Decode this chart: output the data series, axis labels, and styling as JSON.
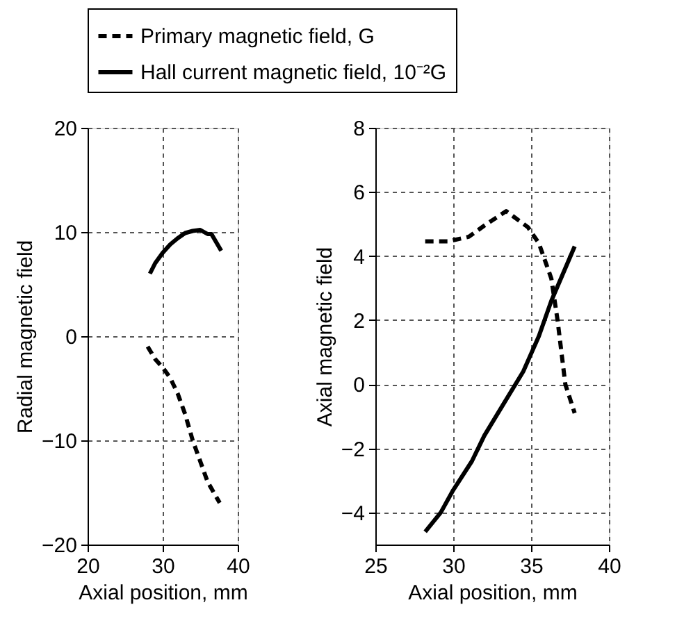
{
  "chart_data": [
    {
      "type": "line",
      "xlabel": "Axial position, mm",
      "ylabel": "Radial magnetic field",
      "xlim": [
        20,
        40
      ],
      "xticks": [
        20,
        30,
        40
      ],
      "ylim": [
        -20,
        20
      ],
      "yticks": [
        -20,
        -10,
        0,
        10,
        20
      ],
      "grid": true,
      "legend": "top",
      "series": [
        {
          "name": "Primary magnetic field, G",
          "color": "#000000",
          "line_style": "dashed",
          "x": [
            28,
            29,
            30,
            31,
            32,
            33,
            34,
            35,
            36,
            37.6
          ],
          "values": [
            -1,
            -2.2,
            -3,
            -4,
            -5.5,
            -7.5,
            -10,
            -12,
            -14,
            -16
          ]
        },
        {
          "name": "Hall current magnetic field, 10⁻²G",
          "color": "#000000",
          "line_style": "solid",
          "x": [
            28.3,
            29,
            30,
            31,
            32,
            33,
            34,
            35,
            36,
            36.5,
            37.8
          ],
          "values": [
            6,
            7,
            8,
            8.8,
            9.4,
            9.9,
            10.1,
            10.2,
            9.8,
            9.8,
            8.2
          ]
        }
      ]
    },
    {
      "type": "line",
      "xlabel": "Axial position, mm",
      "ylabel": "Axial magnetic field",
      "xlim": [
        25,
        40
      ],
      "xticks": [
        25,
        30,
        35,
        40
      ],
      "ylim": [
        -5,
        8
      ],
      "yticks": [
        -4,
        -2,
        0,
        2,
        4,
        6,
        8
      ],
      "grid": true,
      "series": [
        {
          "name": "Primary magnetic field, G",
          "color": "#000000",
          "line_style": "dashed",
          "x": [
            28.2,
            29.7,
            31,
            32,
            33.4,
            34.8,
            35.5,
            36.3,
            36.7,
            37.2,
            37.8
          ],
          "values": [
            4.46,
            4.46,
            4.6,
            4.95,
            5.4,
            4.9,
            4.4,
            3.3,
            2.0,
            0,
            -0.9
          ]
        },
        {
          "name": "Hall current magnetic field, 10⁻²G",
          "color": "#000000",
          "line_style": "solid",
          "x": [
            28.2,
            29.2,
            30,
            31.2,
            32,
            33,
            34.5,
            35.5,
            36.3,
            37.8
          ],
          "values": [
            -4.6,
            -4,
            -3.3,
            -2.4,
            -1.6,
            -0.8,
            0.4,
            1.5,
            2.6,
            4.3
          ]
        }
      ]
    }
  ]
}
